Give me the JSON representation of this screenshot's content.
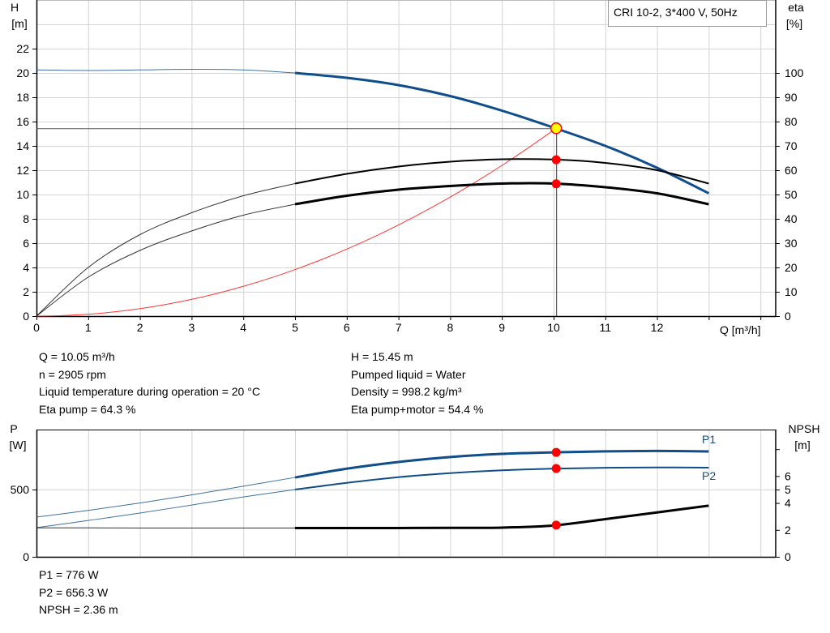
{
  "chart_data": [
    {
      "type": "line",
      "title": "CRI 10-2, 3*400 V, 50Hz",
      "xlabel": "Q [m³/h]",
      "ylabel": [
        "H",
        "[m]"
      ],
      "y2label": [
        "eta",
        "[%]"
      ],
      "xlim": [
        0,
        14
      ],
      "ylim": [
        0,
        26
      ],
      "y2lim": [
        0,
        130
      ],
      "grid": true,
      "x_ticks": [
        "0",
        "1",
        "2",
        "3",
        "4",
        "5",
        "6",
        "7",
        "8",
        "9",
        "10",
        "11",
        "12"
      ],
      "x_ticks_unlabeled": [
        13
      ],
      "y_ticks": [
        "0",
        "2",
        "4",
        "6",
        "8",
        "10",
        "12",
        "14",
        "16",
        "18",
        "20",
        "22"
      ],
      "y2_ticks": [
        "0",
        "10",
        "20",
        "30",
        "40",
        "50",
        "60",
        "70",
        "80",
        "90",
        "100"
      ],
      "x": [
        0,
        1,
        2,
        3,
        4,
        5,
        6,
        7,
        8,
        9,
        10,
        11,
        12,
        13
      ],
      "series": [
        {
          "axis": "H",
          "color": "#0f4e8a",
          "values": [
            20.25,
            20.2,
            20.25,
            20.3,
            20.25,
            20.0,
            19.6,
            19.0,
            18.1,
            16.9,
            15.5,
            14.0,
            12.2,
            10.1
          ]
        },
        {
          "axis": "eta",
          "color": "#000000",
          "values": [
            0,
            20,
            33.5,
            42.5,
            49.5,
            54.5,
            58.5,
            61.5,
            63.5,
            64.5,
            64.4,
            63,
            60,
            54.5
          ]
        },
        {
          "axis": "eta",
          "color": "#000000",
          "values": [
            0,
            16,
            27,
            35,
            41.5,
            46,
            49.5,
            52,
            53.5,
            54.5,
            54.5,
            53,
            50.5,
            46
          ]
        }
      ],
      "system_curve": {
        "color": "#ff3333",
        "coefficient": 0.153,
        "x_max": 10.05
      },
      "operating_point": {
        "q": 10.05,
        "h": 15.45,
        "eta_pump": 64.3,
        "eta_total": 54.4
      }
    },
    {
      "type": "line",
      "ylabel": [
        "P",
        "[W]"
      ],
      "y2label": [
        "NPSH",
        "[m]"
      ],
      "xlim": [
        0,
        14
      ],
      "ylim": [
        0,
        950
      ],
      "y2lim": [
        0,
        9.5
      ],
      "y_ticks": [
        "0",
        "500"
      ],
      "y2_ticks": [
        "0",
        "2",
        "4",
        "5",
        "6"
      ],
      "y2_ticks_unlabeled": [
        8
      ],
      "x": [
        0,
        1,
        2,
        3,
        4,
        5,
        6,
        7,
        8,
        9,
        10,
        11,
        12,
        13
      ],
      "series": [
        {
          "name": "P1",
          "axis": "P",
          "color": "#0f4e8a",
          "values": [
            295,
            345,
            400,
            460,
            525,
            590,
            655,
            705,
            742,
            765,
            776,
            784,
            787,
            783
          ]
        },
        {
          "name": "P2",
          "axis": "P",
          "color": "#0f4e8a",
          "values": [
            217,
            270,
            325,
            385,
            445,
            500,
            550,
            592,
            622,
            643,
            655,
            662,
            664,
            663
          ]
        },
        {
          "axis": "NPSH",
          "color": "#000000",
          "values": [
            2.15,
            2.15,
            2.14,
            2.14,
            2.14,
            2.14,
            2.14,
            2.14,
            2.15,
            2.17,
            2.33,
            2.8,
            3.3,
            3.8
          ]
        }
      ],
      "operating_point": {
        "q": 10.05,
        "p1": 776,
        "p2": 656.3,
        "npsh": 2.36
      }
    }
  ],
  "info": {
    "left": [
      "Q = 10.05 m³/h",
      "n = 2905 rpm",
      "Liquid temperature during operation = 20 °C",
      "Eta pump = 64.3 %"
    ],
    "right": [
      "H = 15.45 m",
      "Pumped liquid = Water",
      "Density = 998.2 kg/m³",
      "Eta pump+motor = 54.4 %"
    ],
    "bottom": [
      "P1 = 776 W",
      "P2 = 656.3 W",
      "NPSH = 2.36 m"
    ]
  },
  "colors": {
    "grid": "#d4d4d4",
    "marker": "#ff0000",
    "duty_point": "#ffff00"
  }
}
